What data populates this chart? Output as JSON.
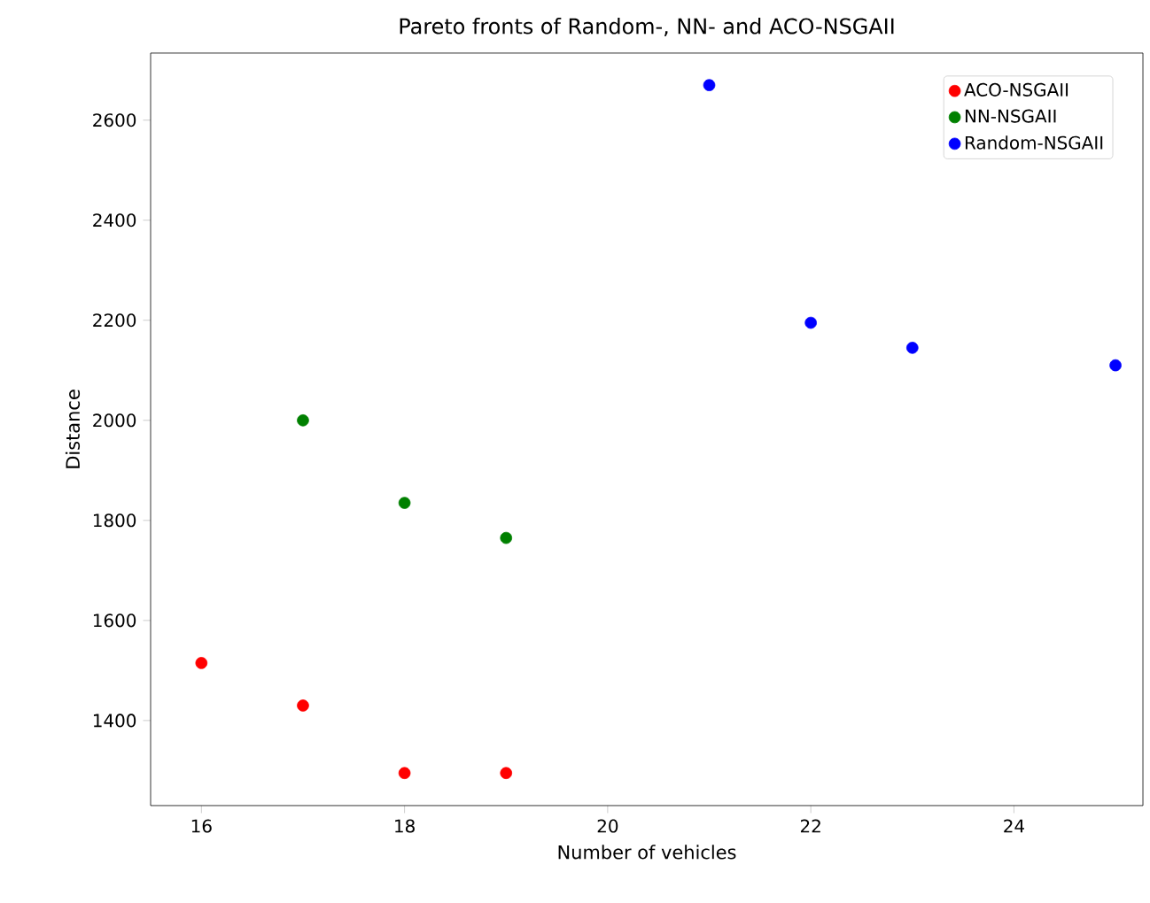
{
  "chart_data": {
    "type": "scatter",
    "title": "Pareto fronts of Random-, NN- and ACO-NSGAII",
    "xlabel": "Number of vehicles",
    "ylabel": "Distance",
    "series": [
      {
        "name": "ACO-NSGAII",
        "color": "#ff0000",
        "x": [
          16,
          17,
          18,
          19
        ],
        "values": [
          1515,
          1430,
          1295,
          1295
        ]
      },
      {
        "name": "NN-NSGAII",
        "color": "#008000",
        "x": [
          17,
          18,
          19
        ],
        "values": [
          2000,
          1835,
          1765
        ]
      },
      {
        "name": "Random-NSGAII",
        "color": "#0000ff",
        "x": [
          21,
          22,
          23,
          25
        ],
        "values": [
          2670,
          2195,
          2145,
          2110
        ]
      }
    ],
    "xlim": [
      15.5,
      25.27
    ],
    "ylim": [
      1230,
      2734
    ],
    "xticks": [
      16,
      18,
      20,
      22,
      24
    ],
    "yticks": [
      1400,
      1600,
      1800,
      2000,
      2200,
      2400,
      2600
    ],
    "legend": "top right",
    "grid": false
  }
}
